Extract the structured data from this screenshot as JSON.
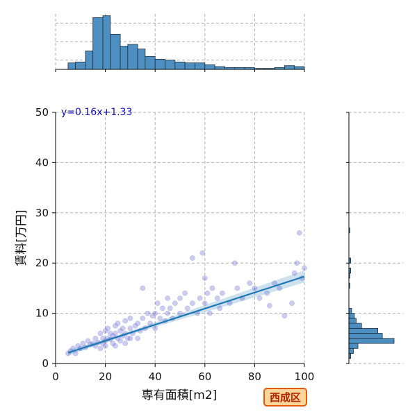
{
  "chart_data": {
    "type": "scatter",
    "xlabel": "専有面積[m2]",
    "ylabel": "賃料[万円]",
    "xlim": [
      0,
      100
    ],
    "ylim": [
      0,
      50
    ],
    "x_ticks": [
      "0",
      "20",
      "40",
      "60",
      "80",
      "100"
    ],
    "y_ticks": [
      "0",
      "10",
      "20",
      "30",
      "40",
      "50"
    ],
    "grid": true,
    "annotation": "y=0.16x+1.33",
    "badge": "西成区",
    "regression": {
      "slope": 0.16,
      "intercept": 1.33,
      "x_range": [
        5,
        100
      ]
    },
    "points": [
      [
        5,
        2
      ],
      [
        6,
        2.5
      ],
      [
        7,
        3
      ],
      [
        8,
        2
      ],
      [
        9,
        3.5
      ],
      [
        10,
        3
      ],
      [
        11,
        4
      ],
      [
        12,
        3.2
      ],
      [
        13,
        4.5
      ],
      [
        14,
        3.8
      ],
      [
        15,
        4
      ],
      [
        16,
        3.5
      ],
      [
        16,
        5
      ],
      [
        17,
        4.2
      ],
      [
        18,
        3
      ],
      [
        18,
        6
      ],
      [
        19,
        5
      ],
      [
        19,
        4
      ],
      [
        20,
        4.5
      ],
      [
        20,
        6.5
      ],
      [
        20,
        3.5
      ],
      [
        21,
        5
      ],
      [
        21,
        7
      ],
      [
        22,
        4.8
      ],
      [
        22,
        6
      ],
      [
        23,
        5.5
      ],
      [
        23,
        4
      ],
      [
        24,
        6
      ],
      [
        24,
        7.5
      ],
      [
        25,
        5
      ],
      [
        25,
        8
      ],
      [
        26,
        6.5
      ],
      [
        27,
        5.5
      ],
      [
        27,
        7
      ],
      [
        28,
        6
      ],
      [
        28,
        8.5
      ],
      [
        29,
        5
      ],
      [
        30,
        7
      ],
      [
        30,
        9
      ],
      [
        31,
        6
      ],
      [
        32,
        7.5
      ],
      [
        33,
        8
      ],
      [
        34,
        6.5
      ],
      [
        35,
        9
      ],
      [
        35,
        15
      ],
      [
        36,
        7
      ],
      [
        37,
        10
      ],
      [
        38,
        8
      ],
      [
        39,
        9.5
      ],
      [
        40,
        7
      ],
      [
        40,
        10
      ],
      [
        41,
        12
      ],
      [
        42,
        9
      ],
      [
        43,
        11
      ],
      [
        44,
        8.5
      ],
      [
        45,
        10
      ],
      [
        45,
        13
      ],
      [
        46,
        11
      ],
      [
        47,
        9
      ],
      [
        48,
        12
      ],
      [
        50,
        10
      ],
      [
        50,
        13
      ],
      [
        52,
        14
      ],
      [
        53,
        11
      ],
      [
        55,
        12
      ],
      [
        55,
        21
      ],
      [
        57,
        10
      ],
      [
        58,
        13
      ],
      [
        59,
        22
      ],
      [
        60,
        17
      ],
      [
        60,
        12
      ],
      [
        61,
        14
      ],
      [
        62,
        10
      ],
      [
        63,
        15
      ],
      [
        65,
        13
      ],
      [
        66,
        11
      ],
      [
        67,
        14
      ],
      [
        70,
        12
      ],
      [
        72,
        20
      ],
      [
        73,
        15
      ],
      [
        75,
        13
      ],
      [
        78,
        16
      ],
      [
        80,
        15
      ],
      [
        82,
        13
      ],
      [
        85,
        14
      ],
      [
        86,
        11.5
      ],
      [
        88,
        16
      ],
      [
        90,
        15
      ],
      [
        92,
        9.5
      ],
      [
        95,
        12
      ],
      [
        96,
        18
      ],
      [
        97,
        20
      ],
      [
        98,
        26
      ],
      [
        99,
        17
      ],
      [
        100,
        19
      ],
      [
        28,
        4
      ],
      [
        30,
        5
      ],
      [
        33,
        5
      ],
      [
        24,
        3.5
      ],
      [
        26,
        4.5
      ]
    ],
    "top_hist": {
      "bins": [
        [
          5,
          8,
          0.07
        ],
        [
          8,
          12,
          0.08
        ],
        [
          12,
          15,
          0.2
        ],
        [
          15,
          19,
          0.56
        ],
        [
          19,
          22,
          0.58
        ],
        [
          22,
          26,
          0.38
        ],
        [
          26,
          29,
          0.25
        ],
        [
          29,
          33,
          0.27
        ],
        [
          33,
          36,
          0.22
        ],
        [
          36,
          40,
          0.14
        ],
        [
          40,
          44,
          0.11
        ],
        [
          44,
          48,
          0.1
        ],
        [
          48,
          52,
          0.08
        ],
        [
          52,
          56,
          0.07
        ],
        [
          56,
          60,
          0.07
        ],
        [
          60,
          64,
          0.05
        ],
        [
          64,
          68,
          0.03
        ],
        [
          68,
          72,
          0.02
        ],
        [
          72,
          76,
          0.02
        ],
        [
          76,
          80,
          0.02
        ],
        [
          80,
          84,
          0.01
        ],
        [
          84,
          88,
          0.01
        ],
        [
          88,
          92,
          0.02
        ],
        [
          92,
          96,
          0.04
        ],
        [
          96,
          100,
          0.03
        ]
      ]
    },
    "right_hist": {
      "bins": [
        [
          1,
          2,
          0.02
        ],
        [
          2,
          3,
          0.05
        ],
        [
          3,
          4,
          0.1
        ],
        [
          4,
          5,
          0.5
        ],
        [
          5,
          6,
          0.37
        ],
        [
          6,
          7,
          0.32
        ],
        [
          7,
          8,
          0.14
        ],
        [
          8,
          9,
          0.08
        ],
        [
          9,
          10,
          0.06
        ],
        [
          10,
          11,
          0.03
        ],
        [
          15,
          16,
          0.01
        ],
        [
          17,
          18,
          0.01
        ],
        [
          18,
          19,
          0.02
        ],
        [
          20,
          21,
          0.02
        ],
        [
          26,
          27,
          0.01
        ]
      ]
    }
  }
}
